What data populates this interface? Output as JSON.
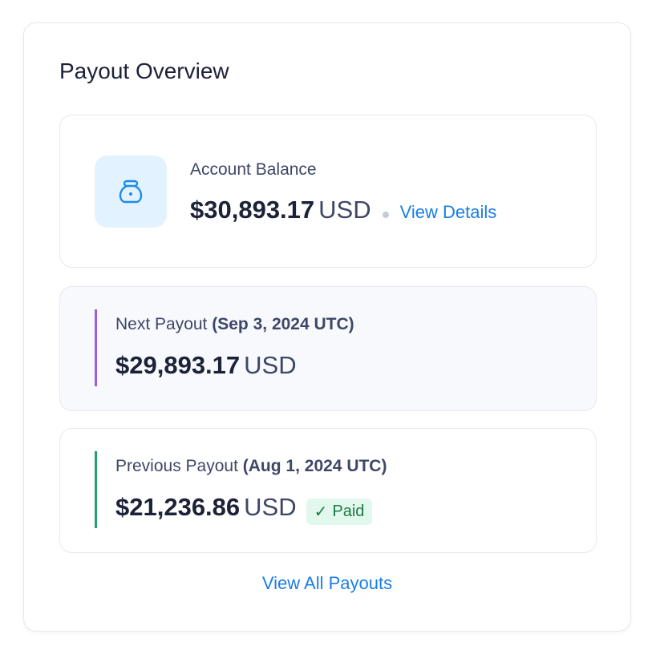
{
  "title": "Payout Overview",
  "balance": {
    "label": "Account Balance",
    "amount": "$30,893.17",
    "currency": "USD",
    "link": "View Details",
    "icon": "money-bag-icon"
  },
  "next": {
    "label": "Next Payout",
    "date": "(Sep 3, 2024 UTC)",
    "amount": "$29,893.17",
    "currency": "USD",
    "accent": "#9b5de5"
  },
  "previous": {
    "label": "Previous Payout",
    "date": "(Aug 1, 2024 UTC)",
    "amount": "$21,236.86",
    "currency": "USD",
    "status": "Paid",
    "accent": "#1fa36a"
  },
  "view_all": "View All Payouts"
}
